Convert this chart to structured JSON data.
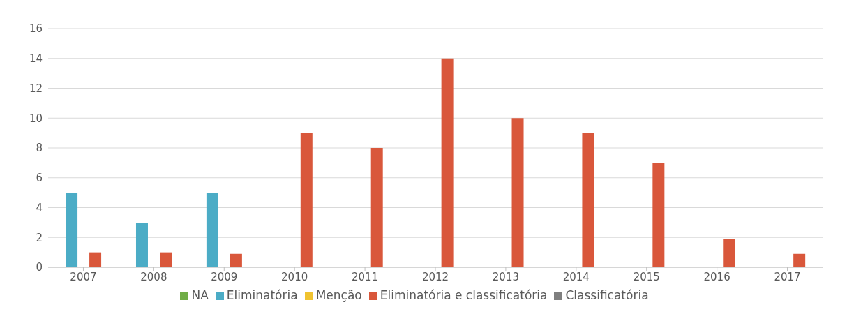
{
  "chart_data": {
    "type": "bar",
    "categories": [
      "2007",
      "2008",
      "2009",
      "2010",
      "2011",
      "2012",
      "2013",
      "2014",
      "2015",
      "2016",
      "2017"
    ],
    "series": [
      {
        "name": "NA",
        "color": "#70ad47",
        "values": [
          null,
          null,
          null,
          null,
          null,
          null,
          null,
          null,
          null,
          null,
          null
        ]
      },
      {
        "name": "Eliminatória",
        "color": "#4bacc6",
        "values": [
          5,
          3,
          5,
          null,
          null,
          null,
          null,
          null,
          null,
          null,
          null
        ]
      },
      {
        "name": "Menção",
        "color": "#f0c330",
        "values": [
          null,
          null,
          null,
          null,
          null,
          null,
          null,
          null,
          null,
          null,
          null
        ]
      },
      {
        "name": "Eliminatória e classificatória",
        "color": "#d9573b",
        "values": [
          1,
          1,
          0.9,
          9,
          8,
          14,
          10,
          9,
          7,
          1.9,
          0.9
        ]
      },
      {
        "name": "Classificatória",
        "color": "#7f7f7f",
        "values": [
          null,
          null,
          null,
          null,
          null,
          null,
          null,
          null,
          null,
          null,
          null
        ]
      }
    ],
    "ylim": [
      0,
      16
    ],
    "yticks": [
      0,
      2,
      4,
      6,
      8,
      10,
      12,
      14,
      16
    ],
    "grid": "y",
    "legend": "bottom"
  }
}
